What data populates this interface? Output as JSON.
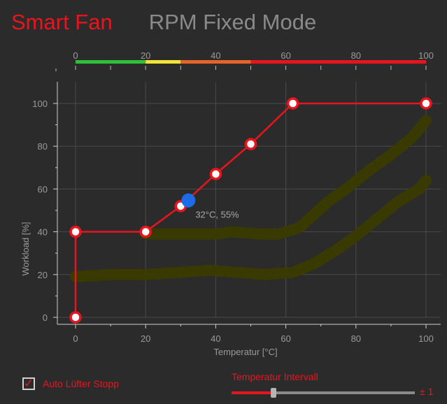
{
  "tabs": [
    {
      "label": "Smart Fan",
      "active": true
    },
    {
      "label": "RPM Fixed Mode",
      "active": false
    }
  ],
  "colors": {
    "accent": "#e8151e",
    "grid": "#4a4a4a",
    "axis_text": "#9a9a9a",
    "cursor_point": "#1e6be8",
    "sensor_trace": "#3a3a00",
    "zone_green": "#2fbf3a",
    "zone_yellow": "#f2e23a",
    "zone_orange": "#e4642a",
    "zone_red": "#e8151e"
  },
  "chart_data": {
    "type": "line",
    "xlabel": "Temperatur [°C]",
    "ylabel": "Workload [%]",
    "xlim": [
      0,
      100
    ],
    "ylim": [
      0,
      100
    ],
    "x_ticks": [
      0,
      20,
      40,
      60,
      80,
      100
    ],
    "y_ticks": [
      0,
      20,
      40,
      60,
      80,
      100
    ],
    "grid": true,
    "top_scale": {
      "ticks": [
        0,
        20,
        40,
        60,
        80,
        100
      ],
      "zones": [
        {
          "from": 0,
          "to": 20,
          "color": "#2fbf3a"
        },
        {
          "from": 20,
          "to": 30,
          "color": "#f2e23a"
        },
        {
          "from": 30,
          "to": 50,
          "color": "#e4642a"
        },
        {
          "from": 50,
          "to": 100,
          "color": "#e8151e"
        }
      ]
    },
    "series": [
      {
        "type": "fan-curve",
        "points": [
          {
            "x": 0,
            "y": 0
          },
          {
            "x": 0,
            "y": 40
          },
          {
            "x": 20,
            "y": 40
          },
          {
            "x": 30,
            "y": 52
          },
          {
            "x": 40,
            "y": 67
          },
          {
            "x": 50,
            "y": 81
          },
          {
            "x": 62,
            "y": 100
          },
          {
            "x": 100,
            "y": 100
          }
        ]
      },
      {
        "type": "sensor-trace",
        "points": [
          [
            20,
            39
          ],
          [
            30,
            39
          ],
          [
            40,
            39
          ],
          [
            45,
            40
          ],
          [
            52,
            39
          ],
          [
            58,
            39
          ],
          [
            64,
            42
          ],
          [
            68,
            48
          ],
          [
            72,
            54
          ],
          [
            78,
            61
          ],
          [
            84,
            69
          ],
          [
            90,
            76
          ],
          [
            96,
            84
          ],
          [
            100,
            92
          ]
        ]
      },
      {
        "type": "sensor-trace",
        "points": [
          [
            0,
            19
          ],
          [
            10,
            20
          ],
          [
            20,
            20
          ],
          [
            30,
            21
          ],
          [
            38,
            22
          ],
          [
            46,
            21
          ],
          [
            54,
            20
          ],
          [
            62,
            21
          ],
          [
            68,
            25
          ],
          [
            74,
            31
          ],
          [
            80,
            38
          ],
          [
            86,
            46
          ],
          [
            92,
            54
          ],
          [
            98,
            60
          ],
          [
            100,
            64
          ]
        ]
      }
    ],
    "cursor": {
      "x": 32,
      "y": 55,
      "label": "32°C, 55%"
    }
  },
  "auto_stop": {
    "label": "Auto Lüfter Stopp",
    "checked": true
  },
  "interval": {
    "label": "Temperatur Intervall",
    "value_text": "± 1",
    "fraction": 0.23
  }
}
